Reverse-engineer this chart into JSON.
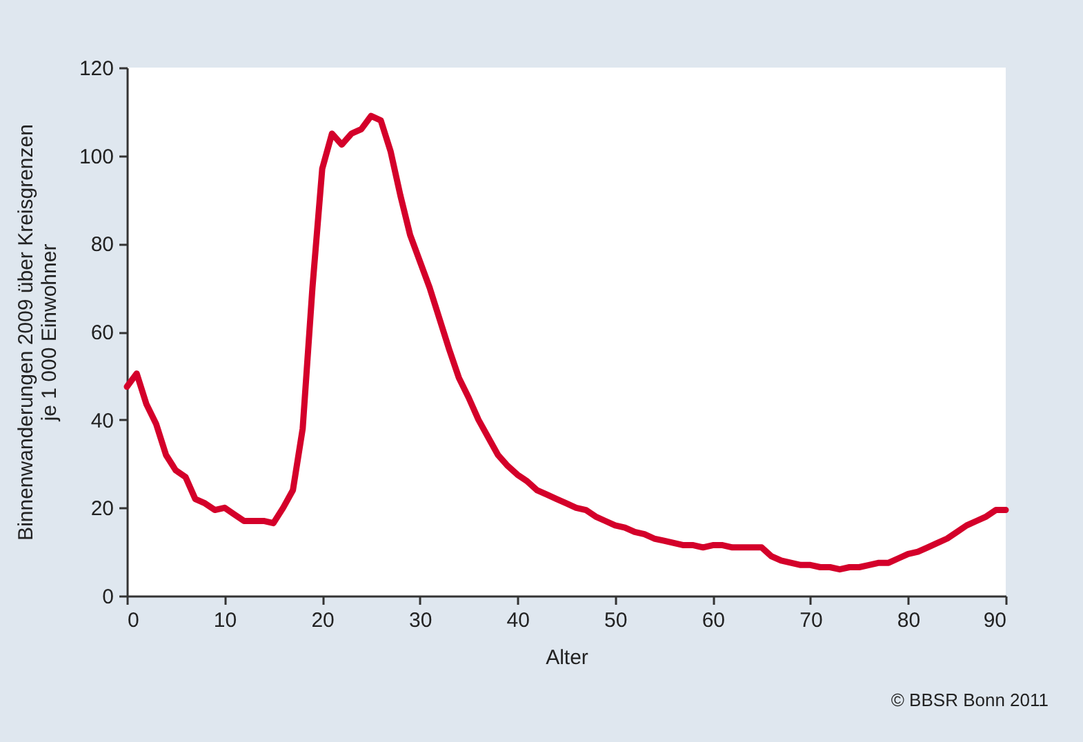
{
  "chart_data": {
    "type": "line",
    "xlabel": "Alter",
    "ylabel": "Binnenwanderungen 2009 über Kreisgrenzen\nje 1 000 Einwohner",
    "annotations": [
      "© BBSR Bonn 2011"
    ],
    "x": [
      0,
      1,
      2,
      3,
      4,
      5,
      6,
      7,
      8,
      9,
      10,
      11,
      12,
      13,
      14,
      15,
      16,
      17,
      18,
      19,
      20,
      21,
      22,
      23,
      24,
      25,
      26,
      27,
      28,
      29,
      30,
      31,
      32,
      33,
      34,
      35,
      36,
      37,
      38,
      39,
      40,
      41,
      42,
      43,
      44,
      45,
      46,
      47,
      48,
      49,
      50,
      51,
      52,
      53,
      54,
      55,
      56,
      57,
      58,
      59,
      60,
      61,
      62,
      63,
      64,
      65,
      66,
      67,
      68,
      69,
      70,
      71,
      72,
      73,
      74,
      75,
      76,
      77,
      78,
      79,
      80,
      81,
      82,
      83,
      84,
      85,
      86,
      87,
      88,
      89,
      90
    ],
    "series": [
      {
        "color": "#d4002a",
        "values": [
          47.5,
          50.5,
          43.5,
          39,
          32,
          28.5,
          27,
          22,
          21,
          19.5,
          20,
          18.5,
          17,
          17,
          17,
          16.5,
          20,
          24,
          38,
          70,
          97,
          105,
          102.5,
          105,
          106,
          109,
          108,
          101,
          91,
          82,
          76,
          70,
          63,
          56,
          49.5,
          45,
          40,
          36,
          32,
          29.5,
          27.5,
          26,
          24,
          23,
          22,
          21,
          20,
          19.5,
          18,
          17,
          16,
          15.5,
          14.5,
          14,
          13,
          12.5,
          12,
          11.5,
          11.5,
          11,
          11.5,
          11.5,
          11,
          11,
          11,
          11,
          9,
          8,
          7.5,
          7,
          7,
          6.5,
          6.5,
          6,
          6.5,
          6.5,
          7,
          7.5,
          7.5,
          8.5,
          9.5,
          10,
          11,
          12,
          13,
          14.5,
          16,
          17,
          18,
          19.5,
          19.5
        ]
      }
    ],
    "xlim": [
      0,
      90
    ],
    "xticks": [
      0,
      10,
      20,
      30,
      40,
      50,
      60,
      70,
      80,
      90
    ],
    "ylim": [
      0,
      120
    ],
    "yticks": [
      0,
      20,
      40,
      60,
      80,
      100,
      120
    ],
    "grid": false,
    "marker": "none",
    "line_style": "solid"
  }
}
